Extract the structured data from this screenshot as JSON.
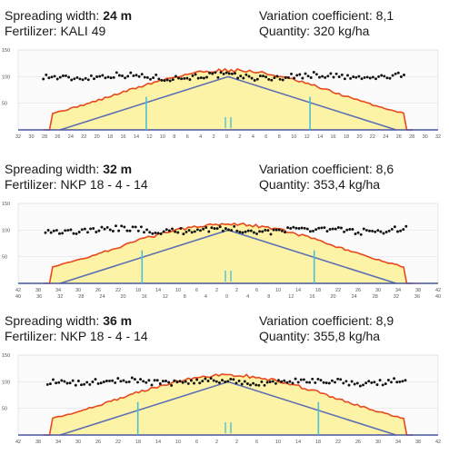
{
  "chart_data": [
    {
      "type": "line",
      "spreading_label": "Spreading width: ",
      "spreading_value": "24 m",
      "fertilizer": "Fertilizer: KALI 49",
      "variation": "Variation coefficient: 8,1",
      "quantity": "Quantity: 320 kg/ha",
      "width_m": 24,
      "ylim": [
        0,
        150
      ],
      "y_ticks": [
        "150",
        "100",
        "50"
      ],
      "x_ticks_row1": [
        "32",
        "30",
        "28",
        "26",
        "24",
        "22",
        "20",
        "18",
        "16",
        "14",
        "12",
        "10",
        "8",
        "6",
        "4",
        "2",
        "0",
        "2",
        "4",
        "6",
        "8",
        "10",
        "12",
        "14",
        "16",
        "18",
        "20",
        "22",
        "24",
        "26",
        "28",
        "30",
        "32"
      ],
      "x_ticks_row2": [],
      "colors": {
        "area_fill": "#fdf3a6",
        "distribution": "#e8481c",
        "triangle": "#5b6fb5",
        "marker": "#4bbfd6",
        "dots": "#111111",
        "axis": "#4a55a0"
      }
    },
    {
      "type": "line",
      "spreading_label": "Spreading width: ",
      "spreading_value": "32 m",
      "fertilizer": "Fertilizer: NKP 18 - 4 - 14",
      "variation": "Variation coefficient: 8,6",
      "quantity": "Quantity: 353,4 kg/ha",
      "width_m": 32,
      "ylim": [
        0,
        150
      ],
      "y_ticks": [
        "150",
        "100",
        "50"
      ],
      "x_ticks_row1": [
        "42",
        "38",
        "34",
        "30",
        "26",
        "22",
        "18",
        "14",
        "10",
        "6",
        "2",
        "2",
        "6",
        "10",
        "14",
        "18",
        "22",
        "26",
        "30",
        "34",
        "38",
        "42"
      ],
      "x_ticks_row2": [
        "40",
        "36",
        "32",
        "28",
        "24",
        "20",
        "16",
        "12",
        "8",
        "4",
        "0",
        "4",
        "8",
        "12",
        "16",
        "20",
        "24",
        "28",
        "32",
        "36",
        "40"
      ],
      "colors": {
        "area_fill": "#fdf3a6",
        "distribution": "#e8481c",
        "triangle": "#5b6fb5",
        "marker": "#4bbfd6",
        "dots": "#111111",
        "axis": "#4a55a0"
      }
    },
    {
      "type": "line",
      "spreading_label": "Spreading width: ",
      "spreading_value": "36 m",
      "fertilizer": "Fertilizer: NKP 18 - 4 - 14",
      "variation": "Variation coefficient: 8,9",
      "quantity": "Quantity: 355,8 kg/ha",
      "width_m": 36,
      "ylim": [
        0,
        150
      ],
      "y_ticks": [
        "150",
        "100",
        "50"
      ],
      "x_ticks_row1": [
        "42",
        "38",
        "34",
        "30",
        "26",
        "22",
        "18",
        "14",
        "10",
        "6",
        "2",
        "2",
        "6",
        "10",
        "14",
        "18",
        "22",
        "26",
        "30",
        "34",
        "38",
        "42"
      ],
      "x_ticks_row2": [],
      "colors": {
        "area_fill": "#fdf3a6",
        "distribution": "#e8481c",
        "triangle": "#5b6fb5",
        "marker": "#4bbfd6",
        "dots": "#111111",
        "axis": "#4a55a0"
      }
    }
  ]
}
